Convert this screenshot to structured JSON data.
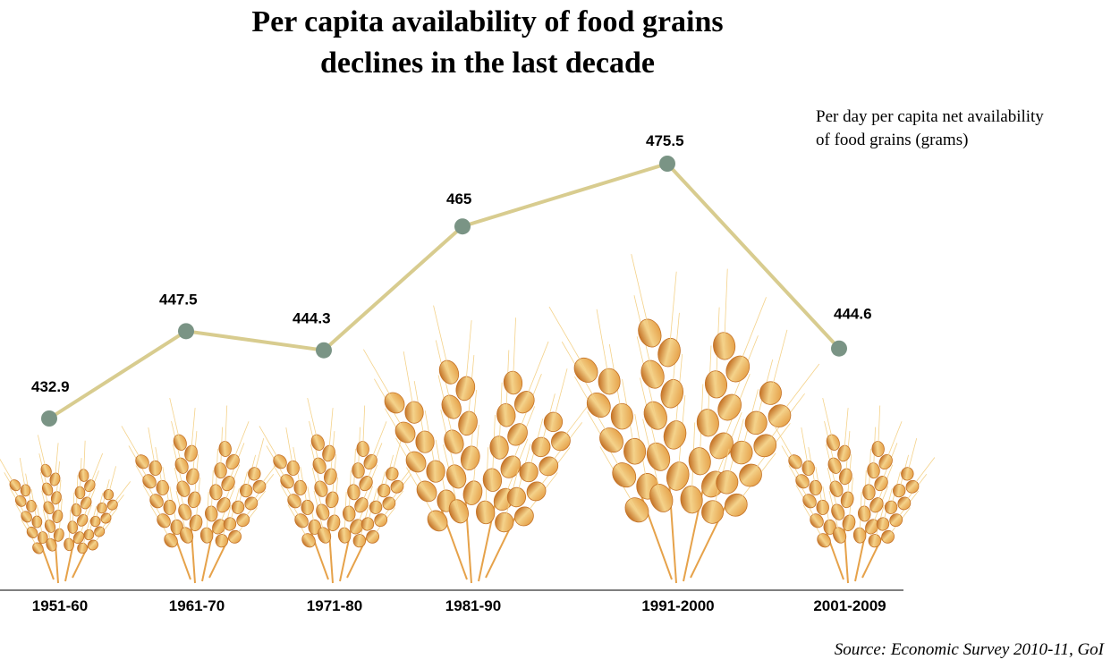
{
  "chart_data": {
    "type": "line",
    "title_line1": "Per capita availability of food grains",
    "title_line2": "declines in the last decade",
    "series_label_line1": "Per day per capita net availability",
    "series_label_line2": "of food grains (grams)",
    "categories": [
      "1951-60",
      "1961-70",
      "1971-80",
      "1981-90",
      "1991-2000",
      "2001-2009"
    ],
    "values": [
      432.9,
      447.5,
      444.3,
      465,
      475.5,
      444.6
    ],
    "value_labels": [
      "432.9",
      "447.5",
      "444.3",
      "465",
      "475.5",
      "444.6"
    ],
    "ylabel": "Per day per capita net availability of food grains (grams)",
    "ylim": [
      410,
      490
    ],
    "source": "Source: Economic Survey 2010-11, GoI",
    "colors": {
      "line": "#d8cc8f",
      "marker": "#7a9485",
      "wheat_light": "#f4d28a",
      "wheat_mid": "#e6a24a",
      "wheat_dark": "#c47226",
      "baseline": "#555555"
    }
  }
}
